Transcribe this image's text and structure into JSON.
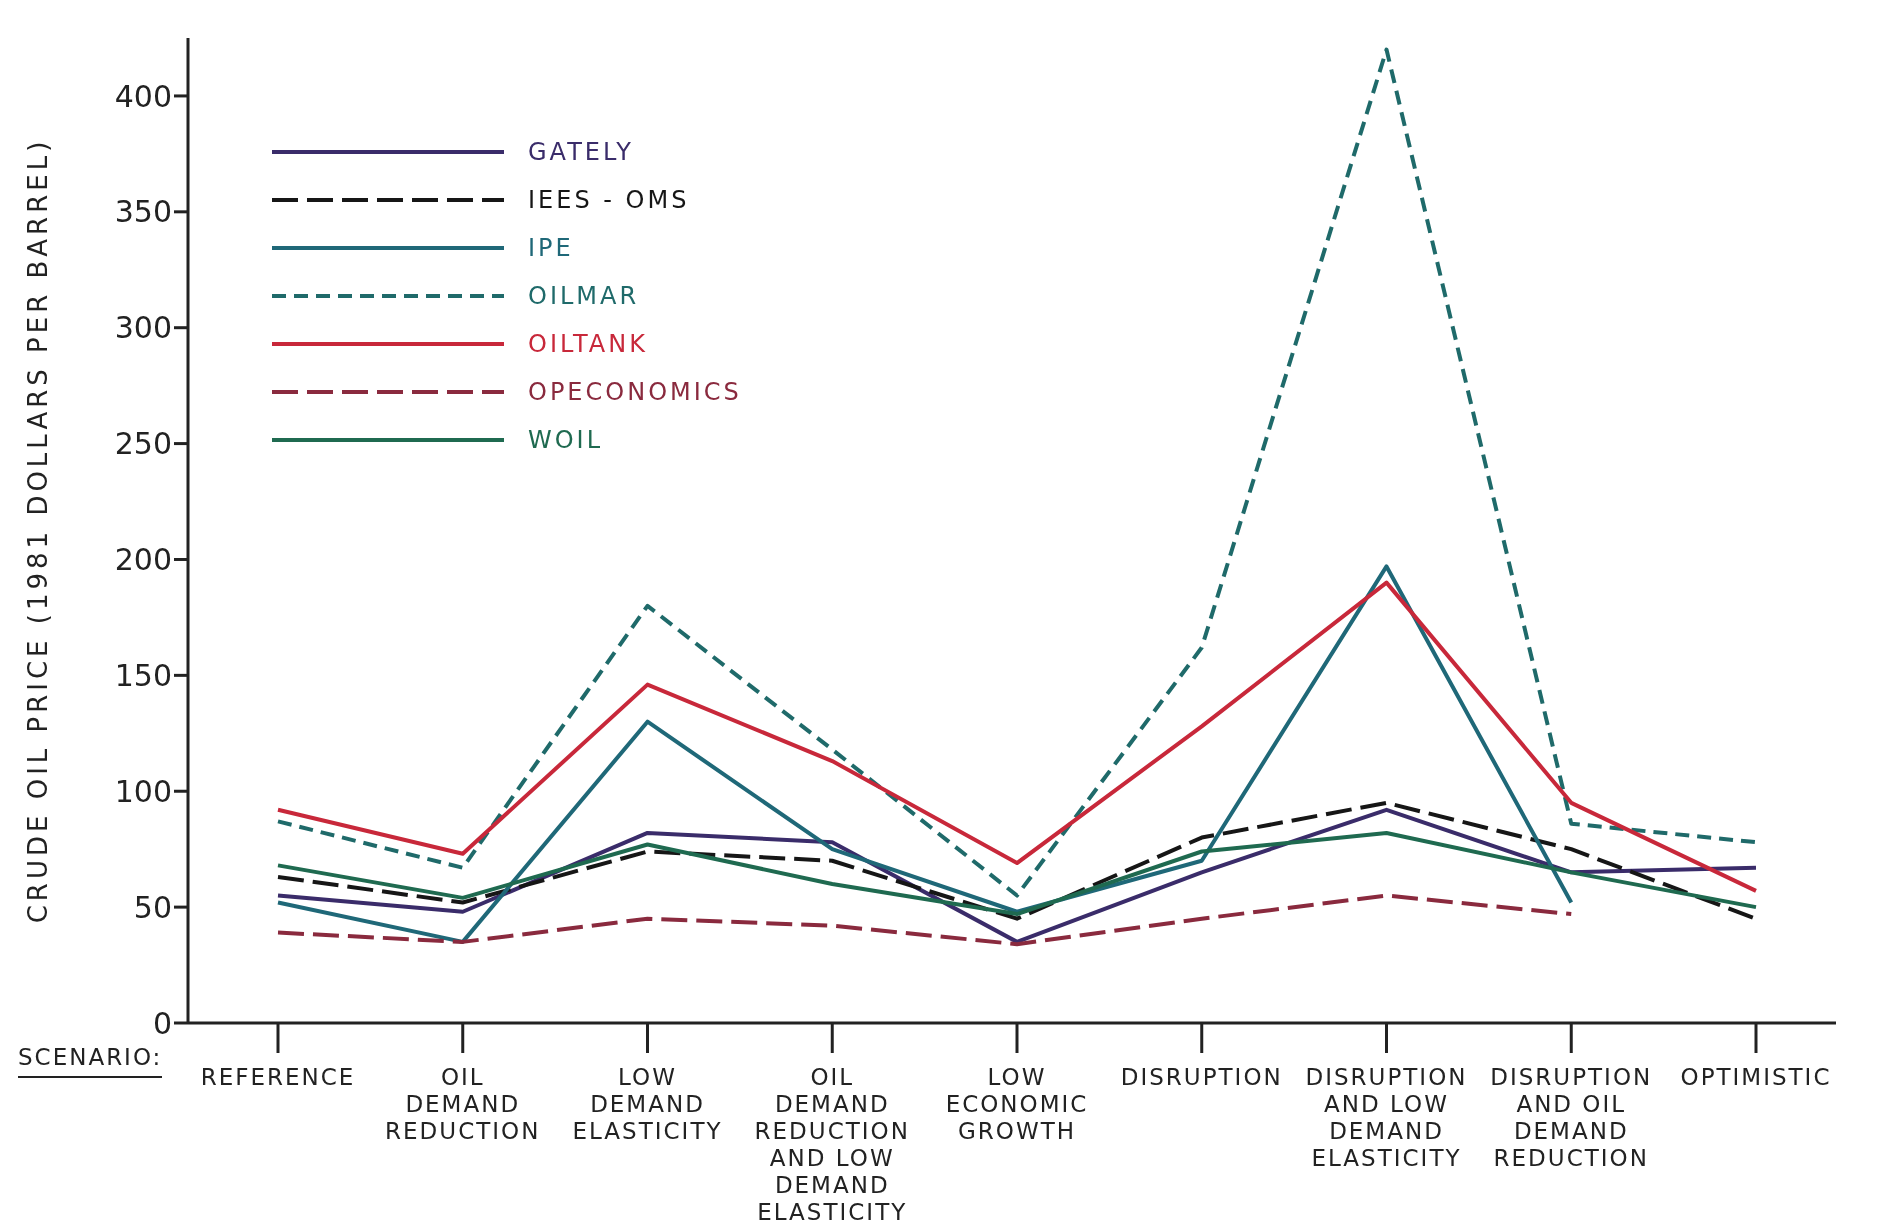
{
  "chart_data": {
    "type": "line",
    "xlabel": "SCENARIO:",
    "ylabel": "CRUDE OIL PRICE (1981 DOLLARS PER BARREL)",
    "categories": [
      "REFERENCE",
      "OIL DEMAND REDUCTION",
      "LOW DEMAND ELASTICITY",
      "OIL DEMAND REDUCTION AND LOW DEMAND ELASTICITY",
      "LOW ECONOMIC GROWTH",
      "DISRUPTION",
      "DISRUPTION AND LOW DEMAND ELASTICITY",
      "DISRUPTION AND OIL DEMAND REDUCTION",
      "OPTIMISTIC"
    ],
    "series": [
      {
        "name": "GATELY",
        "color": "#3a2c6a",
        "line_style": "solid",
        "values": [
          55,
          48,
          82,
          78,
          35,
          65,
          92,
          65,
          67
        ]
      },
      {
        "name": "IEES - OMS",
        "color": "#161616",
        "line_style": "dashed",
        "values": [
          63,
          52,
          74,
          70,
          45,
          80,
          95,
          75,
          45
        ]
      },
      {
        "name": "IPE",
        "color": "#1f6878",
        "line_style": "solid",
        "values": [
          52,
          35,
          130,
          75,
          48,
          70,
          197,
          52,
          null
        ]
      },
      {
        "name": "OILMAR",
        "color": "#1f6a6a",
        "line_style": "dashed",
        "values": [
          87,
          67,
          180,
          118,
          55,
          162,
          420,
          86,
          78
        ]
      },
      {
        "name": "OILTANK",
        "color": "#c8283a",
        "line_style": "solid",
        "values": [
          92,
          73,
          146,
          113,
          69,
          128,
          190,
          95,
          57
        ]
      },
      {
        "name": "OPECONOMICS",
        "color": "#8a2a3e",
        "line_style": "dashed",
        "values": [
          39,
          35,
          45,
          42,
          34,
          45,
          55,
          47,
          null
        ]
      },
      {
        "name": "WOIL",
        "color": "#1f6a50",
        "line_style": "solid",
        "values": [
          68,
          54,
          77,
          60,
          47,
          74,
          82,
          65,
          50
        ]
      }
    ],
    "ylim": [
      0,
      425
    ],
    "yticks": [
      0,
      50,
      100,
      150,
      200,
      250,
      300,
      350,
      400
    ],
    "grid": false,
    "legend": "top left",
    "marker": "none"
  }
}
